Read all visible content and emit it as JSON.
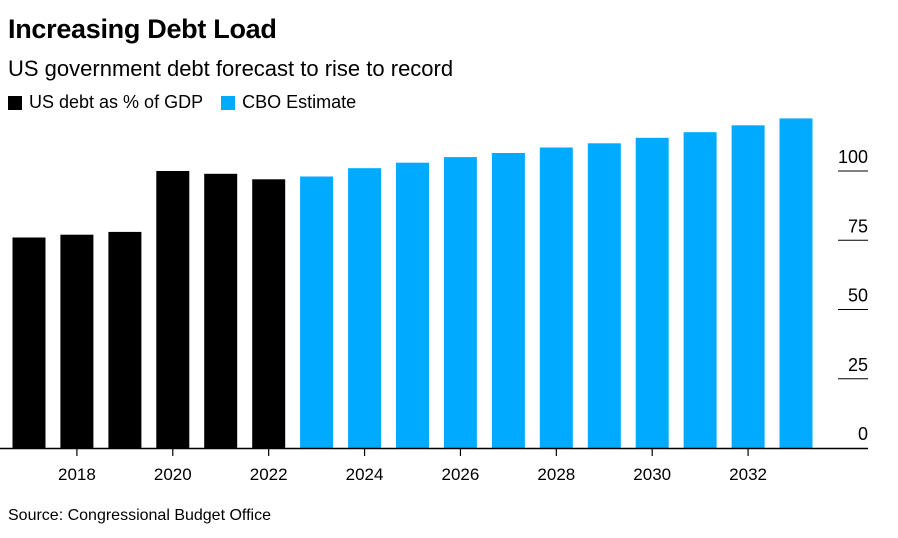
{
  "header": {
    "title": "Increasing Debt Load",
    "subtitle": "US government debt forecast to rise to record"
  },
  "legend": [
    {
      "label": "US debt as % of GDP",
      "color": "#000000"
    },
    {
      "label": "CBO Estimate",
      "color": "#00aaff"
    }
  ],
  "footer": {
    "source": "Source: Congressional Budget Office"
  },
  "chart_data": {
    "type": "bar",
    "title": "Increasing Debt Load",
    "subtitle": "US government debt forecast to rise to record",
    "xlabel": "",
    "ylabel": "",
    "categories": [
      "2017",
      "2018",
      "2019",
      "2020",
      "2021",
      "2022",
      "2023",
      "2024",
      "2025",
      "2026",
      "2027",
      "2028",
      "2029",
      "2030",
      "2031",
      "2032",
      "2033"
    ],
    "series": [
      {
        "name": "US debt as % of GDP",
        "color": "#000000",
        "values": [
          76,
          77,
          78,
          100,
          99,
          97,
          null,
          null,
          null,
          null,
          null,
          null,
          null,
          null,
          null,
          null,
          null
        ]
      },
      {
        "name": "CBO Estimate",
        "color": "#00aaff",
        "values": [
          null,
          null,
          null,
          null,
          null,
          null,
          98,
          101,
          103,
          105,
          106.5,
          108.5,
          110,
          112,
          114,
          116.5,
          119
        ]
      }
    ],
    "xticks": [
      "2018",
      "2020",
      "2022",
      "2024",
      "2026",
      "2028",
      "2030",
      "2032"
    ],
    "yticks": [
      0,
      25,
      50,
      75,
      100
    ],
    "ylim": [
      0,
      120
    ],
    "y_axis_position": "right",
    "grid": false,
    "legend_position": "top-left"
  }
}
